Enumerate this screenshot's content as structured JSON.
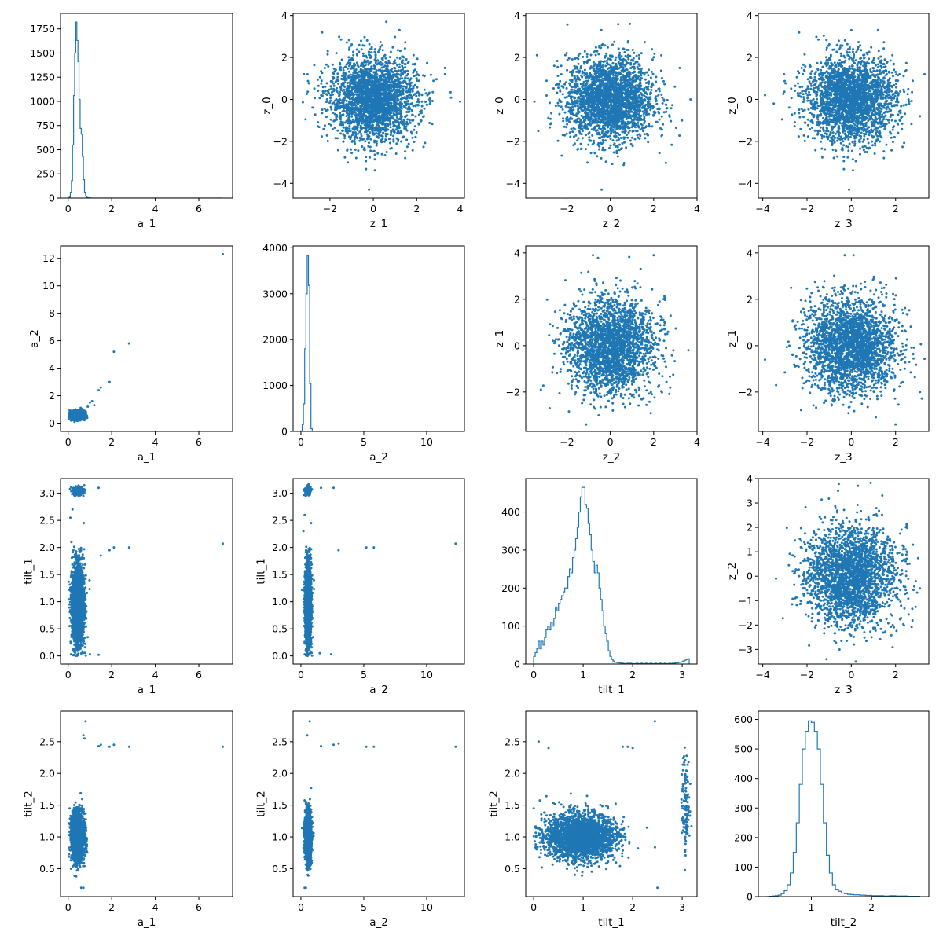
{
  "figure": {
    "accent_color": "#1f77b4",
    "background": "#ffffff"
  },
  "chart_data": [
    {
      "panel": "0-0",
      "type": "histogram",
      "xlabel": "a_1",
      "ylabel": "",
      "xlim": [
        -0.35,
        7.55
      ],
      "ylim": [
        0,
        1910
      ],
      "xticks": [
        0,
        2,
        4,
        6
      ],
      "yticks": [
        0,
        250,
        500,
        750,
        1000,
        1250,
        1500,
        1750
      ],
      "bins_x": [
        0,
        0.05,
        0.1,
        0.15,
        0.2,
        0.25,
        0.3,
        0.35,
        0.4,
        0.45,
        0.5,
        0.55,
        0.6,
        0.65,
        0.7,
        0.75,
        0.8,
        0.85,
        0.9,
        0.95,
        1.0,
        1.05,
        7.1
      ],
      "counts": [
        0,
        10,
        60,
        180,
        550,
        1060,
        1500,
        1820,
        1630,
        1410,
        1020,
        720,
        660,
        430,
        190,
        60,
        20,
        6,
        3,
        2,
        1,
        0
      ]
    },
    {
      "panel": "0-1",
      "type": "scatter",
      "xlabel": "z_1",
      "ylabel": "z_0",
      "xlim": [
        -3.7,
        4.2
      ],
      "ylim": [
        -4.7,
        4.1
      ],
      "xticks": [
        -2,
        0,
        2,
        4
      ],
      "yticks": [
        -4,
        -2,
        0,
        2,
        4
      ],
      "dist": {
        "x": [
          0,
          1
        ],
        "y": [
          0,
          1
        ]
      },
      "outliers": [
        [
          4.0,
          -0.1
        ],
        [
          0.6,
          3.7
        ],
        [
          -0.2,
          -4.3
        ],
        [
          -3.2,
          1.2
        ],
        [
          3.3,
          1.5
        ]
      ]
    },
    {
      "panel": "0-2",
      "type": "scatter",
      "xlabel": "z_2",
      "ylabel": "z_0",
      "xlim": [
        -3.9,
        4.0
      ],
      "ylim": [
        -4.7,
        4.1
      ],
      "xticks": [
        -2,
        0,
        2,
        4
      ],
      "yticks": [
        -4,
        -2,
        0,
        2,
        4
      ],
      "dist": {
        "x": [
          0,
          1
        ],
        "y": [
          0,
          1
        ]
      },
      "outliers": [
        [
          3.7,
          0.0
        ],
        [
          -3.5,
          -0.1
        ],
        [
          -0.4,
          -4.3
        ],
        [
          0.9,
          3.6
        ],
        [
          3.2,
          1.5
        ]
      ]
    },
    {
      "panel": "0-3",
      "type": "scatter",
      "xlabel": "z_3",
      "ylabel": "z_0",
      "xlim": [
        -4.2,
        3.5
      ],
      "ylim": [
        -4.7,
        4.1
      ],
      "xticks": [
        -4,
        -2,
        0,
        2
      ],
      "yticks": [
        -4,
        -2,
        0,
        2,
        4
      ],
      "dist": {
        "x": [
          0,
          1
        ],
        "y": [
          0,
          1
        ]
      },
      "outliers": [
        [
          -3.9,
          0.2
        ],
        [
          3.1,
          -0.8
        ],
        [
          -0.1,
          -4.3
        ],
        [
          0.0,
          3.3
        ],
        [
          -3.5,
          -0.2
        ]
      ]
    },
    {
      "panel": "1-0",
      "type": "scatter",
      "xlabel": "a_1",
      "ylabel": "a_2",
      "xlim": [
        -0.35,
        7.55
      ],
      "ylim": [
        -0.6,
        12.9
      ],
      "xticks": [
        0,
        2,
        4,
        6
      ],
      "yticks": [
        0,
        2,
        4,
        6,
        8,
        10,
        12
      ],
      "dist": {
        "x": [
          0.45,
          0.14
        ],
        "y": [
          0.58,
          0.14
        ],
        "xmin": 0.02,
        "ymin": 0.05
      },
      "outliers": [
        [
          7.1,
          12.3
        ],
        [
          2.8,
          5.8
        ],
        [
          2.1,
          5.2
        ],
        [
          1.9,
          3.0
        ],
        [
          1.5,
          2.6
        ],
        [
          1.4,
          2.4
        ],
        [
          1.1,
          1.6
        ],
        [
          1.0,
          1.5
        ],
        [
          0.9,
          1.2
        ],
        [
          1.2,
          1.3
        ]
      ]
    },
    {
      "panel": "1-1",
      "type": "histogram",
      "xlabel": "a_2",
      "ylabel": "",
      "xlim": [
        -0.62,
        13.0
      ],
      "ylim": [
        0,
        4040
      ],
      "xticks": [
        0,
        5,
        10
      ],
      "yticks": [
        0,
        1000,
        2000,
        3000,
        4000
      ],
      "bins_x": [
        0,
        0.1,
        0.2,
        0.3,
        0.4,
        0.5,
        0.6,
        0.7,
        0.8,
        0.9,
        12.3
      ],
      "counts": [
        10,
        150,
        600,
        1800,
        3000,
        3830,
        3180,
        1040,
        60,
        5
      ]
    },
    {
      "panel": "1-2",
      "type": "scatter",
      "xlabel": "z_2",
      "ylabel": "z_1",
      "xlim": [
        -3.9,
        4.0
      ],
      "ylim": [
        -3.7,
        4.3
      ],
      "xticks": [
        -2,
        0,
        2,
        4
      ],
      "yticks": [
        -2,
        0,
        2,
        4
      ],
      "dist": {
        "x": [
          0,
          1
        ],
        "y": [
          0,
          1
        ]
      },
      "outliers": [
        [
          -0.8,
          3.9
        ],
        [
          2.0,
          3.9
        ],
        [
          -3.2,
          -1.9
        ],
        [
          3.6,
          -0.2
        ],
        [
          -2.8,
          -2.7
        ]
      ]
    },
    {
      "panel": "1-3",
      "type": "scatter",
      "xlabel": "z_3",
      "ylabel": "z_1",
      "xlim": [
        -4.2,
        3.5
      ],
      "ylim": [
        -3.7,
        4.3
      ],
      "xticks": [
        -4,
        -2,
        0,
        2
      ],
      "yticks": [
        -2,
        0,
        2,
        4
      ],
      "dist": {
        "x": [
          0,
          1
        ],
        "y": [
          0,
          1
        ]
      },
      "outliers": [
        [
          0.1,
          3.9
        ],
        [
          -0.3,
          3.9
        ],
        [
          -3.9,
          -0.6
        ],
        [
          3.1,
          -2.0
        ],
        [
          2.0,
          -3.4
        ]
      ]
    },
    {
      "panel": "2-0",
      "type": "scatter",
      "xlabel": "a_1",
      "ylabel": "tilt_1",
      "xlim": [
        -0.35,
        7.55
      ],
      "ylim": [
        -0.15,
        3.27
      ],
      "xticks": [
        0,
        2,
        4,
        6
      ],
      "yticks": [
        0.0,
        0.5,
        1.0,
        1.5,
        2.0,
        2.5,
        3.0
      ],
      "dist": {
        "x": [
          0.45,
          0.14
        ],
        "y": [
          0.95,
          0.35
        ],
        "xmin": 0.02,
        "ymin": 0.0,
        "cluster": {
          "n": 200,
          "x": [
            0.45,
            0.15
          ],
          "y": [
            3.05,
            0.04
          ]
        }
      },
      "outliers": [
        [
          7.1,
          2.07
        ],
        [
          2.8,
          2.0
        ],
        [
          2.1,
          2.0
        ],
        [
          1.9,
          1.95
        ],
        [
          1.5,
          1.85
        ],
        [
          1.4,
          3.1
        ],
        [
          1.0,
          0.03
        ],
        [
          1.4,
          0.02
        ],
        [
          0.2,
          2.7
        ],
        [
          0.1,
          2.55
        ],
        [
          0.15,
          2.1
        ]
      ]
    },
    {
      "panel": "2-1",
      "type": "scatter",
      "xlabel": "a_2",
      "ylabel": "tilt_1",
      "xlim": [
        -0.62,
        13.0
      ],
      "ylim": [
        -0.15,
        3.27
      ],
      "xticks": [
        0,
        5,
        10
      ],
      "yticks": [
        0.0,
        0.5,
        1.0,
        1.5,
        2.0,
        2.5,
        3.0
      ],
      "dist": {
        "x": [
          0.58,
          0.12
        ],
        "y": [
          0.95,
          0.35
        ],
        "xmin": 0.05,
        "ymin": 0.0,
        "cluster": {
          "n": 200,
          "x": [
            0.55,
            0.12
          ],
          "y": [
            3.05,
            0.04
          ]
        }
      },
      "outliers": [
        [
          12.3,
          2.07
        ],
        [
          5.8,
          2.0
        ],
        [
          5.2,
          2.0
        ],
        [
          3.0,
          1.95
        ],
        [
          2.6,
          3.1
        ],
        [
          1.6,
          3.1
        ],
        [
          1.5,
          0.05
        ],
        [
          2.4,
          0.03
        ],
        [
          0.3,
          2.6
        ],
        [
          0.2,
          2.3
        ]
      ]
    },
    {
      "panel": "2-2",
      "type": "histogram",
      "xlabel": "tilt_1",
      "ylabel": "",
      "xlim": [
        -0.16,
        3.3
      ],
      "ylim": [
        0,
        488
      ],
      "xticks": [
        0,
        1,
        2,
        3
      ],
      "yticks": [
        0,
        100,
        200,
        300,
        400
      ],
      "bins_x": [
        0.0,
        0.0314,
        0.0628,
        0.0942,
        0.1257,
        0.1571,
        0.1885,
        0.2199,
        0.2513,
        0.2827,
        0.3142,
        0.3456,
        0.377,
        0.4084,
        0.4398,
        0.4712,
        0.5027,
        0.5341,
        0.5655,
        0.5969,
        0.6283,
        0.6597,
        0.6912,
        0.7226,
        0.754,
        0.7854,
        0.8168,
        0.8482,
        0.8796,
        0.9111,
        0.9425,
        0.9739,
        1.0053,
        1.0367,
        1.0681,
        1.0996,
        1.131,
        1.1624,
        1.1938,
        1.2252,
        1.2566,
        1.2881,
        1.3195,
        1.3509,
        1.3823,
        1.4137,
        1.4451,
        1.4765,
        1.508,
        1.5394,
        1.5708,
        1.6022,
        1.6336,
        1.665,
        1.6965,
        1.7279,
        1.7593,
        1.7907,
        1.8221,
        1.8535,
        1.885,
        1.9164,
        1.9478,
        1.9792,
        2.0106,
        2.042,
        2.0735,
        2.1049,
        2.1363,
        2.1677,
        2.1991,
        2.2305,
        2.2619,
        2.2934,
        2.3248,
        2.3562,
        2.3876,
        2.419,
        2.4504,
        2.4819,
        2.5133,
        2.5447,
        2.5761,
        2.6075,
        2.6389,
        2.6704,
        2.7018,
        2.7332,
        2.7646,
        2.796,
        2.8274,
        2.8588,
        2.8903,
        2.9217,
        2.9531,
        2.9845,
        3.0159,
        3.0473,
        3.0788,
        3.1102,
        3.1416
      ],
      "counts": [
        20,
        30,
        40,
        60,
        40,
        60,
        50,
        70,
        90,
        100,
        90,
        110,
        100,
        120,
        150,
        140,
        160,
        170,
        180,
        190,
        200,
        200,
        230,
        250,
        240,
        280,
        300,
        330,
        360,
        400,
        440,
        465,
        465,
        420,
        410,
        370,
        340,
        300,
        270,
        240,
        260,
        240,
        200,
        170,
        140,
        100,
        80,
        60,
        35,
        20,
        12,
        8,
        5,
        4,
        3,
        3,
        2,
        2,
        1,
        1,
        2,
        1,
        2,
        1,
        1,
        1,
        2,
        1,
        1,
        2,
        1,
        1,
        2,
        1,
        1,
        2,
        1,
        1,
        2,
        1,
        1,
        2,
        1,
        1,
        2,
        1,
        1,
        2,
        1,
        2,
        2,
        3,
        3,
        4,
        5,
        6,
        8,
        10,
        12,
        14
      ]
    },
    {
      "panel": "2-3",
      "type": "scatter",
      "xlabel": "z_3",
      "ylabel": "z_2",
      "xlim": [
        -4.2,
        3.5
      ],
      "ylim": [
        -3.6,
        4.0
      ],
      "xticks": [
        -4,
        -2,
        0,
        2
      ],
      "yticks": [
        -3,
        -2,
        -1,
        0,
        1,
        2,
        3,
        4
      ],
      "dist": {
        "x": [
          0,
          1
        ],
        "y": [
          0,
          1
        ]
      },
      "outliers": [
        [
          -0.6,
          3.5
        ],
        [
          0.3,
          3.7
        ],
        [
          -3.4,
          -0.1
        ],
        [
          3.1,
          -0.5
        ],
        [
          0.2,
          -3.5
        ]
      ]
    },
    {
      "panel": "3-0",
      "type": "scatter",
      "xlabel": "a_1",
      "ylabel": "tilt_2",
      "xlim": [
        -0.35,
        7.55
      ],
      "ylim": [
        0.06,
        2.98
      ],
      "xticks": [
        0,
        2,
        4,
        6
      ],
      "yticks": [
        0.5,
        1.0,
        1.5,
        2.0,
        2.5
      ],
      "dist": {
        "x": [
          0.45,
          0.14
        ],
        "y": [
          1.0,
          0.18
        ],
        "xmin": 0.02,
        "ymin": 0.35
      },
      "outliers": [
        [
          7.1,
          2.42
        ],
        [
          2.8,
          2.42
        ],
        [
          2.1,
          2.45
        ],
        [
          1.9,
          2.42
        ],
        [
          1.5,
          2.45
        ],
        [
          1.4,
          2.43
        ],
        [
          0.8,
          2.82
        ],
        [
          0.7,
          2.6
        ],
        [
          0.75,
          2.55
        ],
        [
          0.6,
          0.2
        ],
        [
          0.7,
          0.2
        ]
      ]
    },
    {
      "panel": "3-1",
      "type": "scatter",
      "xlabel": "a_2",
      "ylabel": "tilt_2",
      "xlim": [
        -0.62,
        13.0
      ],
      "ylim": [
        0.06,
        2.98
      ],
      "xticks": [
        0,
        5,
        10
      ],
      "yticks": [
        0.5,
        1.0,
        1.5,
        2.0,
        2.5
      ],
      "dist": {
        "x": [
          0.58,
          0.12
        ],
        "y": [
          1.0,
          0.18
        ],
        "xmin": 0.05,
        "ymin": 0.35
      },
      "outliers": [
        [
          12.3,
          2.42
        ],
        [
          5.8,
          2.42
        ],
        [
          5.2,
          2.42
        ],
        [
          3.0,
          2.47
        ],
        [
          2.6,
          2.45
        ],
        [
          1.6,
          2.43
        ],
        [
          0.7,
          2.82
        ],
        [
          0.5,
          2.6
        ],
        [
          0.4,
          0.2
        ],
        [
          0.3,
          0.2
        ]
      ]
    },
    {
      "panel": "3-2",
      "type": "scatter",
      "xlabel": "tilt_1",
      "ylabel": "tilt_2",
      "xlim": [
        -0.16,
        3.3
      ],
      "ylim": [
        0.06,
        2.98
      ],
      "xticks": [
        0,
        1,
        2,
        3
      ],
      "yticks": [
        0.5,
        1.0,
        1.5,
        2.0,
        2.5
      ],
      "dist": {
        "x": [
          0.95,
          0.35
        ],
        "y": [
          1.0,
          0.18
        ],
        "xmin": 0.0,
        "ymin": 0.35,
        "cluster": {
          "n": 120,
          "x": [
            3.07,
            0.04
          ],
          "y": [
            1.5,
            0.4
          ]
        }
      },
      "outliers": [
        [
          2.45,
          2.82
        ],
        [
          2.5,
          0.2
        ],
        [
          1.8,
          2.42
        ],
        [
          1.9,
          2.42
        ],
        [
          2.0,
          2.4
        ],
        [
          1.5,
          1.45
        ],
        [
          0.1,
          2.5
        ],
        [
          0.3,
          2.4
        ]
      ]
    },
    {
      "panel": "3-3",
      "type": "histogram",
      "xlabel": "tilt_2",
      "ylabel": "",
      "xlim": [
        0.12,
        2.95
      ],
      "ylim": [
        0,
        628
      ],
      "xticks": [
        1,
        2
      ],
      "yticks": [
        0,
        100,
        200,
        300,
        400,
        500,
        600
      ],
      "bins_x": [
        0.25,
        0.3,
        0.35,
        0.4,
        0.45,
        0.5,
        0.55,
        0.6,
        0.65,
        0.7,
        0.75,
        0.8,
        0.85,
        0.9,
        0.95,
        1.0,
        1.05,
        1.1,
        1.15,
        1.2,
        1.25,
        1.3,
        1.35,
        1.4,
        1.45,
        1.5,
        1.55,
        1.6,
        1.65,
        1.7,
        1.75,
        1.8,
        1.85,
        1.9,
        1.95,
        2.0,
        2.1,
        2.2,
        2.3,
        2.4,
        2.5,
        2.6,
        2.7,
        2.8
      ],
      "counts": [
        0,
        1,
        2,
        3,
        5,
        10,
        20,
        40,
        80,
        150,
        250,
        380,
        500,
        560,
        595,
        590,
        560,
        500,
        380,
        250,
        140,
        80,
        40,
        25,
        18,
        12,
        10,
        8,
        7,
        6,
        6,
        5,
        5,
        4,
        4,
        3,
        3,
        2,
        3,
        2,
        2,
        1,
        1
      ]
    }
  ]
}
